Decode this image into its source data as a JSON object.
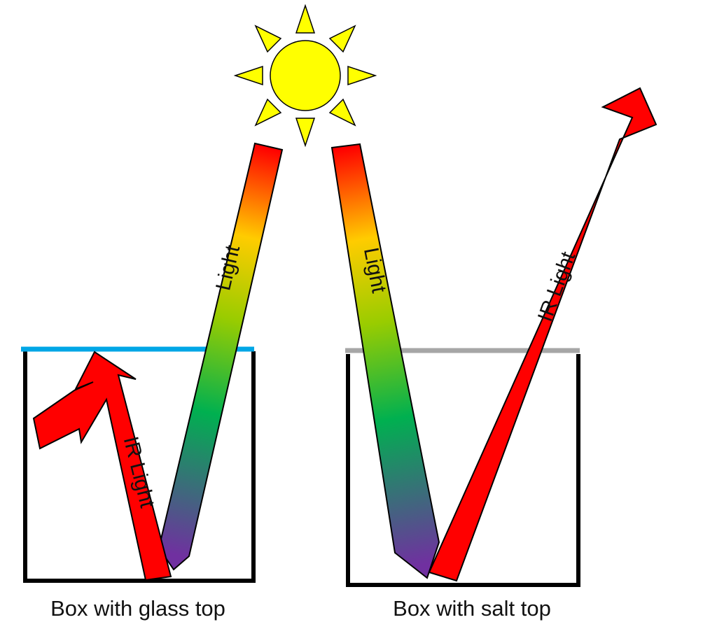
{
  "diagram": {
    "sun": {
      "icon": "sun-icon",
      "color": "#ffff00"
    },
    "left_box": {
      "caption": "Box with glass top",
      "top_color": "#00a6e6",
      "incoming_label": "Light",
      "reflected_label": "IR Light"
    },
    "right_box": {
      "caption": "Box with salt top",
      "top_color": "#a6a6a6",
      "incoming_label": "Light",
      "escaping_label": "IR Light"
    },
    "colors": {
      "ir_arrow": "#ff0000",
      "spectrum": [
        "#ff0000",
        "#ffcc00",
        "#99cc00",
        "#00b050",
        "#7030a0"
      ],
      "outline": "#000000"
    }
  }
}
